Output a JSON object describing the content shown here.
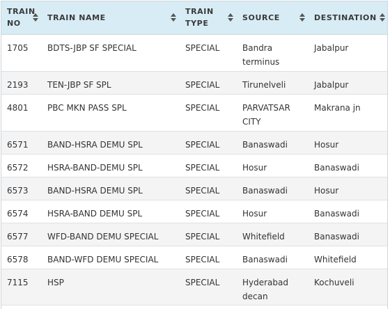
{
  "table": {
    "columns": [
      {
        "label": "TRAIN NO"
      },
      {
        "label": "TRAIN NAME"
      },
      {
        "label": "TRAIN TYPE"
      },
      {
        "label": "SOURCE"
      },
      {
        "label": "DESTINATION"
      }
    ],
    "rows": [
      {
        "no": "1705",
        "name": "BDTS-JBP SF SPECIAL",
        "type": "SPECIAL",
        "source": "Bandra terminus",
        "destination": "Jabalpur"
      },
      {
        "no": "2193",
        "name": "TEN-JBP SF SPL",
        "type": "SPECIAL",
        "source": "Tirunelveli",
        "destination": "Jabalpur"
      },
      {
        "no": "4801",
        "name": "PBC MKN PASS SPL",
        "type": "SPECIAL",
        "source": "PARVATSAR CITY",
        "destination": "Makrana jn"
      },
      {
        "no": "6571",
        "name": "BAND-HSRA DEMU SPL",
        "type": "SPECIAL",
        "source": "Banaswadi",
        "destination": "Hosur"
      },
      {
        "no": "6572",
        "name": "HSRA-BAND-DEMU SPL",
        "type": "SPECIAL",
        "source": "Hosur",
        "destination": "Banaswadi"
      },
      {
        "no": "6573",
        "name": "BAND-HSRA DEMU SPL",
        "type": "SPECIAL",
        "source": "Banaswadi",
        "destination": "Hosur"
      },
      {
        "no": "6574",
        "name": "HSRA-BAND DEMU SPL",
        "type": "SPECIAL",
        "source": "Hosur",
        "destination": "Banaswadi"
      },
      {
        "no": "6577",
        "name": "WFD-BAND DEMU SPECIAL",
        "type": "SPECIAL",
        "source": "Whitefield",
        "destination": "Banaswadi"
      },
      {
        "no": "6578",
        "name": "BAND-WFD DEMU SPECIAL",
        "type": "SPECIAL",
        "source": "Banaswadi",
        "destination": "Whitefield"
      },
      {
        "no": "7115",
        "name": "HSP",
        "type": "SPECIAL",
        "source": "Hyderabad decan",
        "destination": "Kochuveli"
      }
    ]
  }
}
